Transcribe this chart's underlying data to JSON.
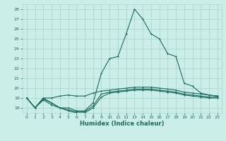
{
  "xlabel": "Humidex (Indice chaleur)",
  "ylabel": "",
  "bg_color": "#cceee8",
  "grid_color": "#aad8d0",
  "line_color": "#1a6b60",
  "xlim": [
    -0.5,
    23.5
  ],
  "ylim": [
    17.5,
    28.5
  ],
  "xticks": [
    0,
    1,
    2,
    3,
    4,
    5,
    6,
    7,
    8,
    9,
    10,
    11,
    12,
    13,
    14,
    15,
    16,
    17,
    18,
    19,
    20,
    21,
    22,
    23
  ],
  "yticks": [
    18,
    19,
    20,
    21,
    22,
    23,
    24,
    25,
    26,
    27,
    28
  ],
  "line_peak_x": [
    0,
    1,
    2,
    3,
    4,
    5,
    6,
    7,
    8,
    9,
    10,
    11,
    12,
    13,
    14,
    15,
    16,
    17,
    18,
    19,
    20,
    21,
    22,
    23
  ],
  "line_peak_y": [
    19.0,
    18.0,
    19.0,
    18.5,
    18.0,
    18.0,
    17.7,
    17.7,
    18.5,
    21.5,
    23.0,
    23.2,
    25.5,
    28.0,
    27.0,
    25.5,
    25.0,
    23.5,
    23.2,
    20.5,
    20.2,
    19.5,
    19.3,
    19.2
  ],
  "line_upper_x": [
    0,
    1,
    2,
    3,
    4,
    5,
    6,
    7,
    8,
    9,
    10,
    11,
    12,
    13,
    14,
    15,
    16,
    17,
    18,
    19,
    20,
    21,
    22,
    23
  ],
  "line_upper_y": [
    19.0,
    18.0,
    19.0,
    19.0,
    19.2,
    19.3,
    19.2,
    19.2,
    19.5,
    19.7,
    19.8,
    19.9,
    20.0,
    20.1,
    20.1,
    20.1,
    20.0,
    19.9,
    19.8,
    19.6,
    19.5,
    19.4,
    19.3,
    19.2
  ],
  "line_mid_x": [
    0,
    1,
    2,
    3,
    4,
    5,
    6,
    7,
    8,
    9,
    10,
    11,
    12,
    13,
    14,
    15,
    16,
    17,
    18,
    19,
    20,
    21,
    22,
    23
  ],
  "line_mid_y": [
    19.0,
    18.0,
    18.9,
    18.5,
    18.0,
    17.8,
    17.6,
    17.6,
    18.2,
    19.4,
    19.6,
    19.7,
    19.8,
    19.9,
    19.9,
    19.9,
    19.8,
    19.7,
    19.6,
    19.4,
    19.3,
    19.2,
    19.1,
    19.1
  ],
  "line_lower_x": [
    0,
    1,
    2,
    3,
    4,
    5,
    6,
    7,
    8,
    9,
    10,
    11,
    12,
    13,
    14,
    15,
    16,
    17,
    18,
    19,
    20,
    21,
    22,
    23
  ],
  "line_lower_y": [
    19.0,
    18.0,
    18.8,
    18.3,
    18.0,
    17.7,
    17.5,
    17.5,
    18.0,
    19.1,
    19.5,
    19.6,
    19.7,
    19.8,
    19.8,
    19.8,
    19.7,
    19.6,
    19.5,
    19.3,
    19.2,
    19.1,
    19.0,
    19.0
  ]
}
